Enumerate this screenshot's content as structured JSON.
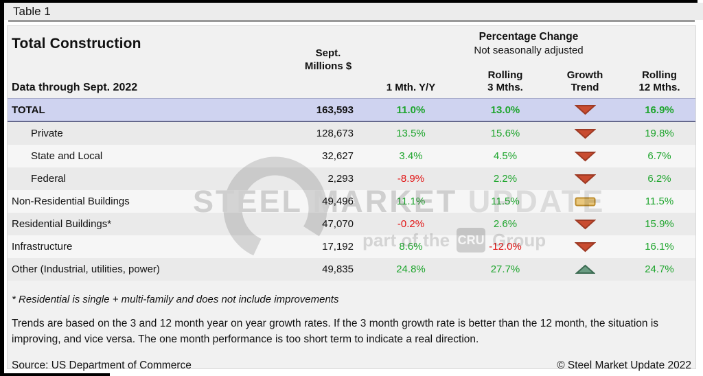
{
  "window": {
    "tab_label": "Table 1"
  },
  "header": {
    "title": "Total Construction",
    "data_through": "Data through Sept. 2022",
    "millions_col_line1": "Sept.",
    "millions_col_line2": "Millions $",
    "pct_change_title": "Percentage Change",
    "pct_change_subtitle": "Not seasonally adjusted",
    "col_1mth": "1 Mth. Y/Y",
    "col_rolling3_line1": "Rolling",
    "col_rolling3_line2": "3 Mths.",
    "col_trend_line1": "Growth",
    "col_trend_line2": "Trend",
    "col_rolling12_line1": "Rolling",
    "col_rolling12_line2": "12 Mths."
  },
  "table": {
    "rows": [
      {
        "label": "TOTAL",
        "indent": false,
        "total": true,
        "millions": "163,593",
        "m1": "11.0%",
        "r3": "13.0%",
        "trend": "down",
        "r12": "16.9%"
      },
      {
        "label": "Private",
        "indent": true,
        "total": false,
        "millions": "128,673",
        "m1": "13.5%",
        "r3": "15.6%",
        "trend": "down",
        "r12": "19.8%"
      },
      {
        "label": "State and Local",
        "indent": true,
        "total": false,
        "millions": "32,627",
        "m1": "3.4%",
        "r3": "4.5%",
        "trend": "down",
        "r12": "6.7%"
      },
      {
        "label": "Federal",
        "indent": true,
        "total": false,
        "millions": "2,293",
        "m1": "-8.9%",
        "r3": "2.2%",
        "trend": "down",
        "r12": "6.2%"
      },
      {
        "label": "Non-Residential Buildings",
        "indent": false,
        "total": false,
        "millions": "49,496",
        "m1": "11.1%",
        "r3": "11.5%",
        "trend": "flat",
        "r12": "11.5%"
      },
      {
        "label": "Residential Buildings*",
        "indent": false,
        "total": false,
        "millions": "47,070",
        "m1": "-0.2%",
        "r3": "2.6%",
        "trend": "down",
        "r12": "15.9%"
      },
      {
        "label": "Infrastructure",
        "indent": false,
        "total": false,
        "millions": "17,192",
        "m1": "8.6%",
        "r3": "-12.0%",
        "trend": "down",
        "r12": "16.1%"
      },
      {
        "label": "Other (Industrial, utilities, power)",
        "indent": false,
        "total": false,
        "millions": "49,835",
        "m1": "24.8%",
        "r3": "27.7%",
        "trend": "up",
        "r12": "24.7%"
      }
    ]
  },
  "notes": {
    "footnote": "* Residential is single + multi-family and does not include improvements",
    "trends": "Trends are based on the 3 and 12 month year on year growth rates. If the 3 month growth rate is better than the 12 month, the situation is improving, and vice versa. The one month performance is too short term to indicate a real direction.",
    "source": "Source: US Department of Commerce",
    "copyright": "© Steel Market Update 2022"
  },
  "watermark": {
    "word1": "STEEL",
    "word2": "MARKET",
    "word3": "UPDATE",
    "sub_left": "part of the",
    "cru": "CRU",
    "sub_right": "Group"
  },
  "colors": {
    "positive_text": "#1ea52d",
    "negative_text": "#e11414",
    "total_row_bg": "#cfd3f0",
    "trend_down_fill": "#c94c30",
    "trend_down_stroke": "#9e3a24",
    "trend_up_fill": "#6a9c82",
    "trend_up_stroke": "#3c6b52",
    "trend_flat_fill": "#e9c77d",
    "trend_flat_stroke": "#bd8e2f"
  },
  "chart_data": {
    "type": "table",
    "title": "Total Construction — Data through Sept. 2022",
    "columns": [
      "Category",
      "Sept. Millions $",
      "1 Mth. Y/Y",
      "Rolling 3 Mths.",
      "Growth Trend",
      "Rolling 12 Mths."
    ],
    "rows": [
      [
        "TOTAL",
        163593,
        "11.0%",
        "13.0%",
        "down",
        "16.9%"
      ],
      [
        "Private",
        128673,
        "13.5%",
        "15.6%",
        "down",
        "19.8%"
      ],
      [
        "State and Local",
        32627,
        "3.4%",
        "4.5%",
        "down",
        "6.7%"
      ],
      [
        "Federal",
        2293,
        "-8.9%",
        "2.2%",
        "down",
        "6.2%"
      ],
      [
        "Non-Residential Buildings",
        49496,
        "11.1%",
        "11.5%",
        "flat",
        "11.5%"
      ],
      [
        "Residential Buildings*",
        47070,
        "-0.2%",
        "2.6%",
        "down",
        "15.9%"
      ],
      [
        "Infrastructure",
        17192,
        "8.6%",
        "-12.0%",
        "down",
        "16.1%"
      ],
      [
        "Other (Industrial, utilities, power)",
        49835,
        "24.8%",
        "27.7%",
        "up",
        "24.7%"
      ]
    ]
  }
}
